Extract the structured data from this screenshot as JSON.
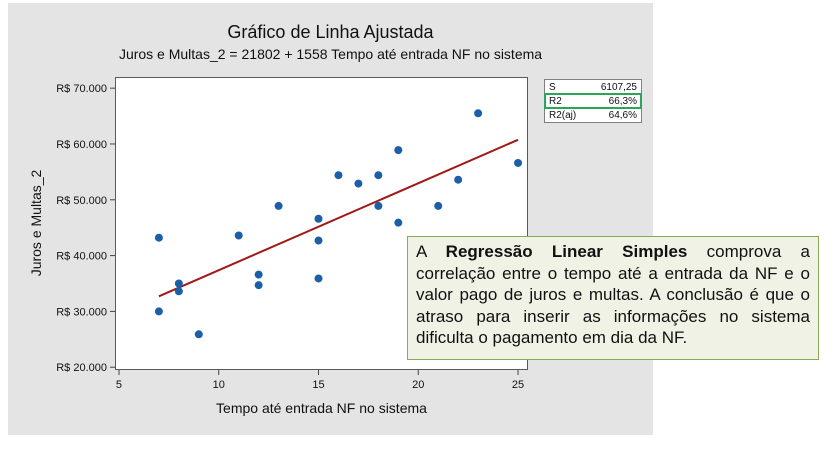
{
  "chart_data": {
    "type": "scatter",
    "title": "Gráfico de Linha Ajustada",
    "subtitle": "Juros e Multas_2 = 21802 + 1558 Tempo até entrada NF no sistema",
    "xlabel": "Tempo até entrada NF no sistema",
    "ylabel": "Juros e Multas_2",
    "xlim": [
      4.8,
      25.5
    ],
    "ylim": [
      19500,
      72000
    ],
    "x_ticks": [
      5,
      10,
      15,
      20,
      25
    ],
    "x_tick_labels": [
      "5",
      "10",
      "15",
      "20",
      "25"
    ],
    "y_ticks": [
      20000,
      30000,
      40000,
      50000,
      60000,
      70000
    ],
    "y_tick_labels": [
      "R$ 20.000",
      "R$ 30.000",
      "R$ 40.000",
      "R$ 50.000",
      "R$ 60.000",
      "R$ 70.000"
    ],
    "grid": false,
    "series": [
      {
        "type": "scatter",
        "color": "#1b5fa8",
        "points": [
          [
            7,
            43200
          ],
          [
            7,
            30000
          ],
          [
            8,
            35000
          ],
          [
            8,
            33600
          ],
          [
            9,
            25900
          ],
          [
            11,
            43600
          ],
          [
            12,
            36600
          ],
          [
            12,
            34700
          ],
          [
            13,
            48900
          ],
          [
            15,
            46600
          ],
          [
            15,
            42700
          ],
          [
            15,
            35900
          ],
          [
            16,
            54400
          ],
          [
            17,
            52900
          ],
          [
            18,
            54400
          ],
          [
            18,
            48900
          ],
          [
            19,
            58900
          ],
          [
            19,
            45900
          ],
          [
            21,
            48900
          ],
          [
            22,
            53600
          ],
          [
            23,
            65500
          ],
          [
            25,
            56600
          ]
        ]
      },
      {
        "type": "line",
        "color": "#a01818",
        "intercept": 21802,
        "slope": 1558,
        "x_range": [
          7,
          25
        ]
      }
    ],
    "stats": [
      {
        "label": "S",
        "value": "6107,25"
      },
      {
        "label": "R2",
        "value": "66,3%"
      },
      {
        "label": "R2(aj)",
        "value": "64,6%"
      }
    ]
  },
  "annotation": {
    "prefix": "A ",
    "bold": "Regressão Linear Simples",
    "rest": " comprova a correlação entre o tempo até a entrada da NF e o valor pago de juros e multas. A conclusão é que o atraso para inserir as informações no sistema dificulta o pagamento em dia da NF."
  }
}
